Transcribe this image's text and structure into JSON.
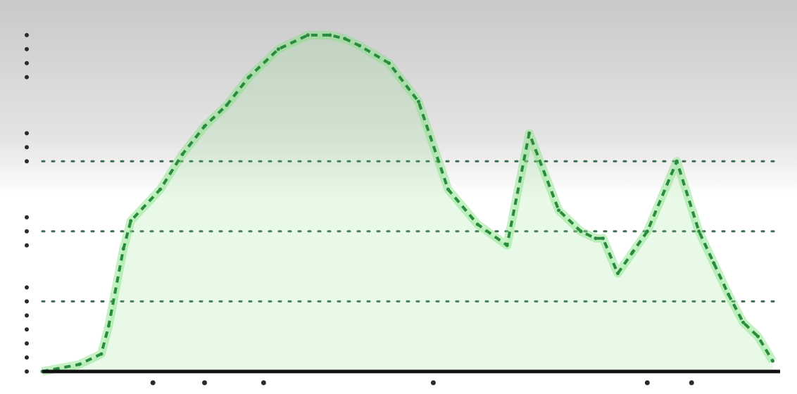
{
  "chart_data": {
    "type": "area",
    "title": "",
    "xlabel": "",
    "ylabel": "",
    "xlim": [
      0,
      100
    ],
    "ylim": [
      0,
      100
    ],
    "grid": {
      "horizontal_dotted_lines_at": [
        20,
        40,
        60
      ]
    },
    "legend": "none",
    "series": [
      {
        "color": "#2a8a3e",
        "fill_color": "#7ee07e",
        "x": [
          0,
          5,
          8,
          9,
          11,
          12,
          16,
          19,
          22,
          25,
          28,
          32,
          36,
          39,
          41,
          43,
          47,
          51,
          55,
          59,
          63,
          66,
          70,
          73,
          75,
          76,
          78,
          80,
          82,
          86,
          89,
          91,
          93,
          95,
          97,
          99
        ],
        "y": [
          0,
          2,
          5,
          13,
          35,
          43,
          52,
          62,
          70,
          76,
          84,
          92,
          96,
          96,
          95,
          93,
          88,
          77,
          52,
          42,
          36,
          68,
          46,
          40,
          38,
          38,
          28,
          34,
          40,
          60,
          40,
          31,
          22,
          14,
          10,
          3
        ]
      }
    ]
  }
}
